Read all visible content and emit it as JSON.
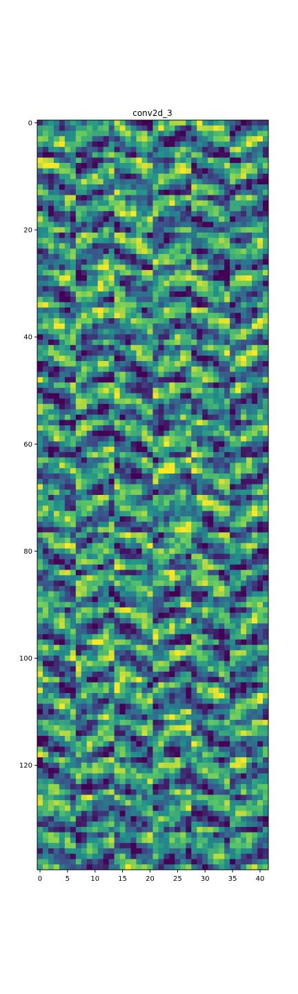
{
  "chart_data": {
    "type": "heatmap",
    "title": "conv2d_3",
    "xlabel": "",
    "ylabel": "",
    "n_cols": 42,
    "n_rows": 140,
    "xlim": [
      -0.5,
      41.5
    ],
    "ylim": [
      139.5,
      -0.5
    ],
    "x_ticks": [
      0,
      5,
      10,
      15,
      20,
      25,
      30,
      35,
      40
    ],
    "x_tick_labels": [
      "0",
      "5",
      "10",
      "15",
      "20",
      "25",
      "30",
      "35",
      "40"
    ],
    "y_ticks": [
      0,
      20,
      40,
      60,
      80,
      100,
      120
    ],
    "y_tick_labels": [
      "0",
      "20",
      "40",
      "60",
      "80",
      "100",
      "120"
    ],
    "colormap": "viridis",
    "colormap_stops": [
      "#440154",
      "#3b528b",
      "#21918c",
      "#5ec962",
      "#fde725"
    ],
    "value_range": [
      0,
      1
    ],
    "grid": false,
    "legend": "none"
  }
}
